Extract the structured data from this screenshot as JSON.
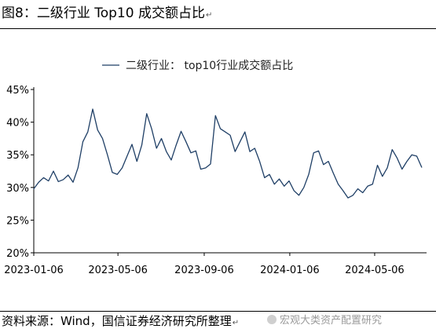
{
  "figure_title": "图8：二级行业 Top10 成交额占比",
  "paragraph_mark": "↵",
  "source_note": "资料来源：Wind，国信证券经济研究所整理",
  "watermark": "宏观大类资产配置研究",
  "colors": {
    "series": "#1f3f66",
    "axis": "#000000"
  },
  "chart_data": {
    "type": "line",
    "title": "",
    "xlabel": "",
    "ylabel": "",
    "ylim": [
      20,
      45
    ],
    "yticks": [
      "20%",
      "25%",
      "30%",
      "35%",
      "40%",
      "45%"
    ],
    "yticks_values": [
      20,
      25,
      30,
      35,
      40,
      45
    ],
    "xticks": [
      "2023-01-06",
      "2023-05-06",
      "2023-09-06",
      "2024-01-06",
      "2024-05-06"
    ],
    "xticks_dates": [
      "2023-01-06",
      "2023-05-06",
      "2023-09-06",
      "2024-01-06",
      "2024-05-06"
    ],
    "xlim": [
      "2023-01-06",
      "2024-07-19"
    ],
    "grid": false,
    "legend_position": "top-center",
    "series": [
      {
        "name": "二级行业： top10行业成交额占比",
        "points": [
          [
            "2023-01-06",
            29.8
          ],
          [
            "2023-01-13",
            30.8
          ],
          [
            "2023-01-20",
            31.5
          ],
          [
            "2023-01-27",
            31.0
          ],
          [
            "2023-02-03",
            32.5
          ],
          [
            "2023-02-10",
            30.9
          ],
          [
            "2023-02-17",
            31.2
          ],
          [
            "2023-02-24",
            31.9
          ],
          [
            "2023-03-03",
            30.8
          ],
          [
            "2023-03-10",
            33.0
          ],
          [
            "2023-03-17",
            37.0
          ],
          [
            "2023-03-24",
            38.5
          ],
          [
            "2023-03-31",
            42.0
          ],
          [
            "2023-04-07",
            38.8
          ],
          [
            "2023-04-14",
            37.5
          ],
          [
            "2023-04-21",
            35.0
          ],
          [
            "2023-04-28",
            32.3
          ],
          [
            "2023-05-05",
            32.0
          ],
          [
            "2023-05-12",
            33.0
          ],
          [
            "2023-05-19",
            34.8
          ],
          [
            "2023-05-26",
            36.6
          ],
          [
            "2023-06-02",
            34.0
          ],
          [
            "2023-06-09",
            36.5
          ],
          [
            "2023-06-16",
            41.3
          ],
          [
            "2023-06-23",
            39.0
          ],
          [
            "2023-06-30",
            36.0
          ],
          [
            "2023-07-07",
            37.5
          ],
          [
            "2023-07-14",
            35.5
          ],
          [
            "2023-07-21",
            34.2
          ],
          [
            "2023-07-28",
            36.5
          ],
          [
            "2023-08-04",
            38.6
          ],
          [
            "2023-08-11",
            37.0
          ],
          [
            "2023-08-18",
            35.3
          ],
          [
            "2023-08-25",
            35.6
          ],
          [
            "2023-09-01",
            32.8
          ],
          [
            "2023-09-08",
            33.0
          ],
          [
            "2023-09-15",
            33.6
          ],
          [
            "2023-09-22",
            41.0
          ],
          [
            "2023-09-29",
            39.0
          ],
          [
            "2023-10-06",
            38.5
          ],
          [
            "2023-10-13",
            38.0
          ],
          [
            "2023-10-20",
            35.5
          ],
          [
            "2023-10-27",
            37.0
          ],
          [
            "2023-11-03",
            38.5
          ],
          [
            "2023-11-10",
            35.5
          ],
          [
            "2023-11-17",
            36.0
          ],
          [
            "2023-11-24",
            34.0
          ],
          [
            "2023-12-01",
            31.5
          ],
          [
            "2023-12-08",
            32.0
          ],
          [
            "2023-12-15",
            30.5
          ],
          [
            "2023-12-22",
            31.3
          ],
          [
            "2023-12-29",
            30.2
          ],
          [
            "2024-01-05",
            31.0
          ],
          [
            "2024-01-12",
            29.5
          ],
          [
            "2024-01-19",
            28.8
          ],
          [
            "2024-01-26",
            30.0
          ],
          [
            "2024-02-02",
            32.0
          ],
          [
            "2024-02-09",
            35.3
          ],
          [
            "2024-02-16",
            35.6
          ],
          [
            "2024-02-23",
            33.5
          ],
          [
            "2024-03-01",
            34.0
          ],
          [
            "2024-03-08",
            32.2
          ],
          [
            "2024-03-15",
            30.5
          ],
          [
            "2024-03-22",
            29.5
          ],
          [
            "2024-03-29",
            28.4
          ],
          [
            "2024-04-05",
            28.8
          ],
          [
            "2024-04-12",
            29.8
          ],
          [
            "2024-04-19",
            29.2
          ],
          [
            "2024-04-26",
            30.2
          ],
          [
            "2024-05-03",
            30.5
          ],
          [
            "2024-05-10",
            33.4
          ],
          [
            "2024-05-17",
            31.7
          ],
          [
            "2024-05-24",
            33.0
          ],
          [
            "2024-05-31",
            35.8
          ],
          [
            "2024-06-07",
            34.5
          ],
          [
            "2024-06-14",
            32.8
          ],
          [
            "2024-06-21",
            34.0
          ],
          [
            "2024-06-28",
            35.0
          ],
          [
            "2024-07-05",
            34.8
          ],
          [
            "2024-07-12",
            33.1
          ]
        ]
      }
    ]
  }
}
